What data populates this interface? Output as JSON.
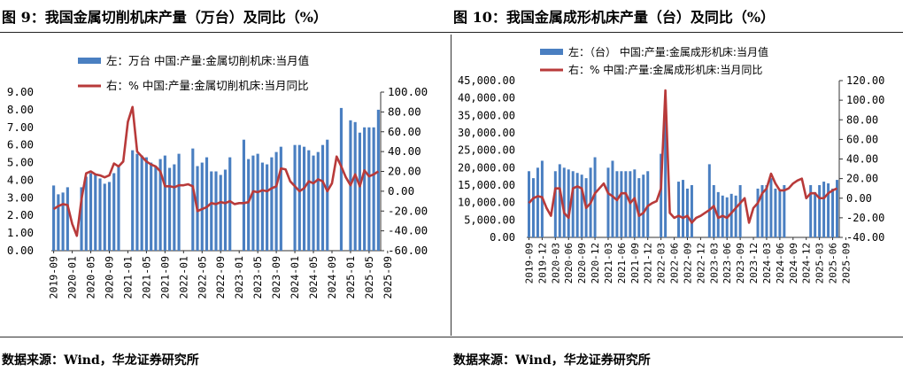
{
  "charts": [
    {
      "title": "图 9：我国金属切削机床产量（万台）及同比（%）",
      "source": "数据来源：Wind，华龙证券研究所",
      "legend": [
        "左：万台  中国:产量:金属切削机床:当月值",
        "右：%  中国:产量:金属切削机床:当月同比"
      ]
    },
    {
      "title": "图 10：我国金属成形机床产量（台）及同比（%）",
      "source": "数据来源：Wind，华龙证券研究所",
      "legend": [
        "左：（台）  中国:产量:金属成形机床:当月值",
        "右：%  中国:产量:金属成形机床:当月同比"
      ]
    }
  ],
  "colors": {
    "bar": "#4a7fc1",
    "line": "#b83a3a",
    "axis": "#333333"
  },
  "chart_data": [
    {
      "type": "bar",
      "title": "图 9：我国金属切削机床产量（万台）及同比（%）",
      "x_tick_labels": [
        "2019-09",
        "2020-01",
        "2020-05",
        "2020-09",
        "2021-01",
        "2021-05",
        "2021-09",
        "2022-01",
        "2022-05",
        "2022-09",
        "2023-01",
        "2023-05",
        "2023-09",
        "2024-01",
        "2024-05",
        "2024-09",
        "2025-01",
        "2025-05",
        "2025-09"
      ],
      "left_axis": {
        "ticks": [
          "0.00",
          "1.00",
          "2.00",
          "3.00",
          "4.00",
          "5.00",
          "6.00",
          "7.00",
          "8.00",
          "9.00"
        ],
        "min": 0,
        "max": 9
      },
      "right_axis": {
        "ticks": [
          "-60.00",
          "-40.00",
          "-20.00",
          "0.00",
          "20.00",
          "40.00",
          "60.00",
          "80.00",
          "100.00"
        ],
        "min": -60,
        "max": 100
      },
      "series": [
        {
          "name": "左：万台  中国:产量:金属切削机床:当月值",
          "axis": "left",
          "kind": "bar",
          "values": [
            3.7,
            3.2,
            3.3,
            3.6,
            null,
            null,
            3.6,
            4.2,
            4.4,
            4.3,
            4.1,
            3.8,
            3.9,
            4.4,
            4.8,
            null,
            null,
            5.7,
            5.5,
            5.4,
            5.3,
            5.0,
            4.8,
            5.2,
            5.4,
            4.7,
            4.9,
            5.5,
            null,
            null,
            5.8,
            4.8,
            5.0,
            5.3,
            4.5,
            4.5,
            4.3,
            4.6,
            5.3,
            null,
            null,
            6.3,
            5.2,
            5.4,
            5.5,
            5.0,
            4.9,
            5.3,
            5.6,
            5.9,
            null,
            null,
            6.0,
            6.0,
            5.9,
            5.7,
            5.4,
            5.6,
            6.0,
            6.3,
            null,
            null,
            8.1,
            null,
            7.4,
            7.3,
            6.7,
            7.0,
            7.0,
            7.0,
            8.0
          ]
        },
        {
          "name": "右：%  中国:产量:金属切削机床:当月同比",
          "axis": "right",
          "kind": "line",
          "values": [
            -18,
            -15,
            -13,
            -14,
            -33,
            -45,
            -8,
            18,
            20,
            17,
            16,
            14,
            16,
            28,
            25,
            30,
            70,
            85,
            40,
            35,
            30,
            27,
            25,
            20,
            5,
            5,
            4,
            6,
            6,
            7,
            5,
            -20,
            -18,
            -16,
            -12,
            -13,
            -11,
            -12,
            -10,
            -13,
            -12,
            -12,
            -11,
            0,
            -1,
            1,
            0,
            3,
            5,
            23,
            22,
            10,
            5,
            0,
            3,
            10,
            8,
            12,
            10,
            0,
            8,
            35,
            25,
            14,
            6,
            17,
            5,
            21,
            15,
            17,
            20
          ]
        }
      ]
    },
    {
      "type": "bar",
      "title": "图 10：我国金属成形机床产量（台）及同比（%）",
      "x_tick_labels": [
        "2019-09",
        "2019-12",
        "2020-03",
        "2020-06",
        "2020-09",
        "2020-12",
        "2021-03",
        "2021-06",
        "2021-09",
        "2021-12",
        "2022-03",
        "2022-06",
        "2022-09",
        "2022-12",
        "2023-03",
        "2023-06",
        "2023-09",
        "2023-12",
        "2024-03",
        "2024-06",
        "2024-09",
        "2024-12",
        "2025-03",
        "2025-06",
        "2025-09"
      ],
      "left_axis": {
        "ticks": [
          "0.00",
          "5,000.00",
          "10,000.00",
          "15,000.00",
          "20,000.00",
          "25,000.00",
          "30,000.00",
          "35,000.00",
          "40,000.00",
          "45,000.00"
        ],
        "min": 0,
        "max": 45000
      },
      "right_axis": {
        "ticks": [
          "-40.00",
          "-20.00",
          "0.00",
          "20.00",
          "40.00",
          "60.00",
          "80.00",
          "100.00",
          "120.00"
        ],
        "min": -40,
        "max": 120
      },
      "series": [
        {
          "name": "左：（台）  中国:产量:金属成形机床:当月值",
          "axis": "left",
          "kind": "bar",
          "values": [
            19000,
            17000,
            20000,
            22000,
            null,
            null,
            19000,
            21000,
            20000,
            19500,
            19000,
            18500,
            18000,
            17000,
            20000,
            23000,
            null,
            null,
            20000,
            22000,
            19000,
            19000,
            19000,
            19000,
            19500,
            17000,
            18000,
            19000,
            null,
            null,
            24000,
            38000,
            null,
            null,
            16000,
            16500,
            14000,
            15000,
            null,
            null,
            null,
            21000,
            15000,
            13000,
            12000,
            11500,
            12500,
            12000,
            15000,
            null,
            null,
            null,
            14000,
            15000,
            15000,
            17000,
            14000,
            13500,
            15000,
            null,
            null,
            null,
            null,
            null,
            15000,
            13000,
            15000,
            16000,
            15500,
            14000,
            16500
          ]
        },
        {
          "name": "右：%  中国:产量:金属成形机床:当月同比",
          "axis": "right",
          "kind": "line",
          "values": [
            -5,
            0,
            2,
            1,
            -10,
            -18,
            10,
            10,
            -15,
            -20,
            10,
            12,
            10,
            -10,
            -5,
            5,
            10,
            15,
            5,
            2,
            -2,
            5,
            5,
            -5,
            0,
            -18,
            -15,
            -8,
            -5,
            -3,
            10,
            110,
            -15,
            -20,
            -18,
            -20,
            -18,
            -25,
            -20,
            -18,
            -15,
            -12,
            -8,
            -20,
            -18,
            -20,
            -15,
            -10,
            -5,
            0,
            -25,
            -10,
            -5,
            5,
            10,
            25,
            15,
            8,
            8,
            10,
            15,
            18,
            20,
            0,
            5,
            5,
            0,
            0,
            5,
            8,
            10
          ]
        }
      ]
    }
  ]
}
